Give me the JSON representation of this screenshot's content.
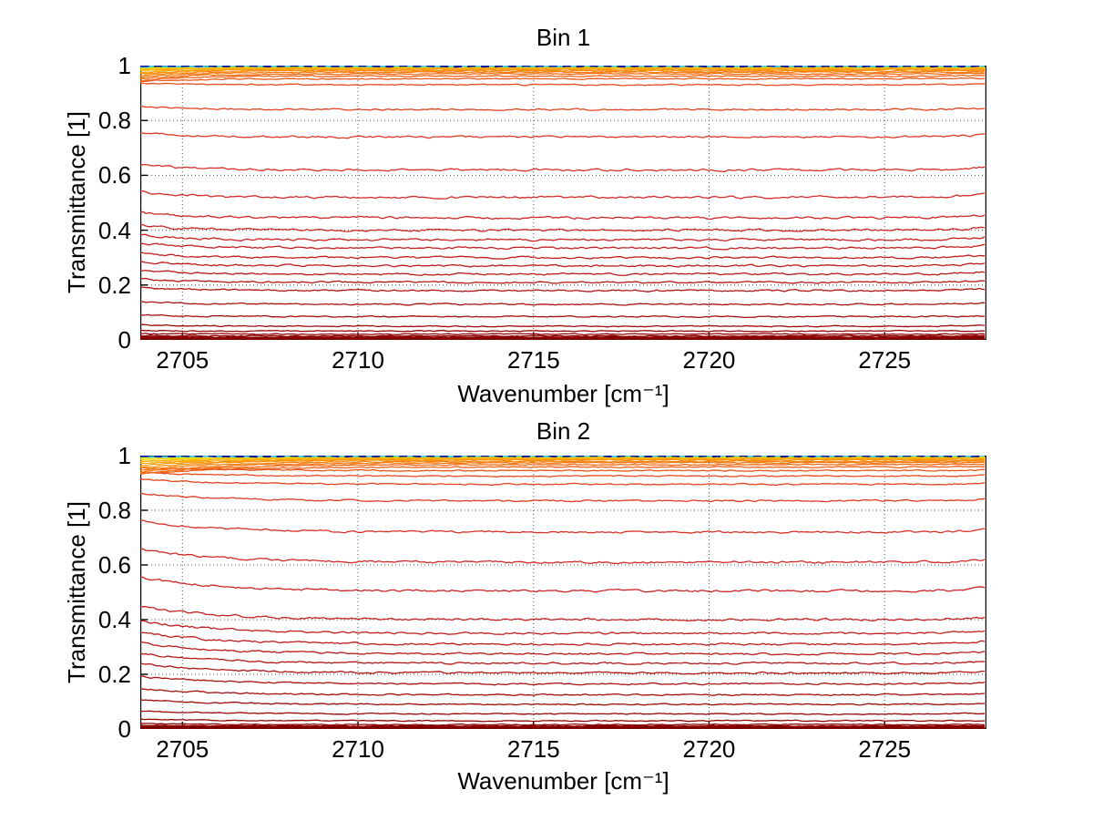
{
  "figure": {
    "background_color": "#FFFFFF",
    "text_color": "#000000"
  },
  "chart_data": [
    {
      "type": "line",
      "title": "Bin 1",
      "xlabel": "Wavenumber [cm⁻¹]",
      "ylabel": "Transmittance [1]",
      "xlim": [
        2703.8,
        2727.9
      ],
      "ylim": [
        0,
        1
      ],
      "xticks": [
        2705,
        2710,
        2715,
        2720,
        2725
      ],
      "yticks": [
        0,
        0.2,
        0.4,
        0.6,
        0.8,
        1
      ],
      "ytick_labels": [
        "0",
        "0.2",
        "0.4",
        "0.6",
        "0.8",
        "1"
      ],
      "grid": "dotted",
      "grid_color": "#555555",
      "axis_color": "#000000",
      "legend": "none",
      "left_elevation": 0.02,
      "left_dip_near_one": 0.02,
      "elevation_decay_cm": 1.3,
      "right_hook": 0.012,
      "series": [
        {
          "level": 0.004,
          "color": "#7A0000",
          "width": 4
        },
        {
          "level": 0.009,
          "color": "#8B0000",
          "width": 2
        },
        {
          "level": 0.014,
          "color": "#8E0202"
        },
        {
          "level": 0.021,
          "color": "#920505"
        },
        {
          "level": 0.032,
          "color": "#970808"
        },
        {
          "level": 0.05,
          "color": "#9C0B0B"
        },
        {
          "level": 0.085,
          "color": "#A20F0F"
        },
        {
          "level": 0.13,
          "color": "#A81212"
        },
        {
          "level": 0.18,
          "color": "#AE1515"
        },
        {
          "level": 0.21,
          "color": "#B21717"
        },
        {
          "level": 0.24,
          "color": "#B61919"
        },
        {
          "level": 0.27,
          "color": "#BA1B1B"
        },
        {
          "level": 0.3,
          "color": "#BE1D1D"
        },
        {
          "level": 0.335,
          "color": "#C22020"
        },
        {
          "level": 0.365,
          "color": "#C52222"
        },
        {
          "level": 0.4,
          "color": "#C92424"
        },
        {
          "level": 0.445,
          "color": "#CD2626"
        },
        {
          "level": 0.52,
          "color": "#D22B29"
        },
        {
          "level": 0.62,
          "color": "#D73127"
        },
        {
          "level": 0.74,
          "color": "#DC3A25"
        },
        {
          "level": 0.84,
          "color": "#E14322"
        },
        {
          "level": 0.93,
          "color": "#E64D1F"
        },
        {
          "level": 0.952,
          "color": "#EA581C"
        },
        {
          "level": 0.962,
          "color": "#EE6318"
        },
        {
          "level": 0.97,
          "color": "#F16F14"
        },
        {
          "level": 0.976,
          "color": "#F47B11"
        },
        {
          "level": 0.981,
          "color": "#F7870D"
        },
        {
          "level": 0.985,
          "color": "#F9930A"
        },
        {
          "level": 0.988,
          "color": "#FB9F07"
        },
        {
          "level": 0.991,
          "color": "#FDAB04"
        },
        {
          "level": 0.9935,
          "color": "#FFB900",
          "width": 1.5
        },
        {
          "level": 0.9955,
          "color": "#F4D600",
          "width": 1.5
        },
        {
          "level": 0.997,
          "color": "#CFE400"
        },
        {
          "level": 0.998,
          "color": "#3CCFE6",
          "width": 1.8
        },
        {
          "level": 0.999,
          "color": "#00139B",
          "width": 2.6,
          "dash": "9 6"
        }
      ]
    },
    {
      "type": "line",
      "title": "Bin 2",
      "xlabel": "Wavenumber [cm⁻¹]",
      "ylabel": "Transmittance [1]",
      "xlim": [
        2703.8,
        2727.9
      ],
      "ylim": [
        0,
        1
      ],
      "xticks": [
        2705,
        2710,
        2715,
        2720,
        2725
      ],
      "yticks": [
        0,
        0.2,
        0.4,
        0.6,
        0.8,
        1
      ],
      "ytick_labels": [
        "0",
        "0.2",
        "0.4",
        "0.6",
        "0.8",
        "1"
      ],
      "grid": "dotted",
      "grid_color": "#555555",
      "axis_color": "#000000",
      "legend": "none",
      "left_elevation": 0.05,
      "left_dip_near_one": 0.035,
      "elevation_decay_cm": 2.2,
      "right_hook": 0.012,
      "series": [
        {
          "level": 0.004,
          "color": "#7A0000",
          "width": 4
        },
        {
          "level": 0.01,
          "color": "#8B0000",
          "width": 2
        },
        {
          "level": 0.016,
          "color": "#8E0202"
        },
        {
          "level": 0.03,
          "color": "#920505"
        },
        {
          "level": 0.055,
          "color": "#970808"
        },
        {
          "level": 0.09,
          "color": "#9C0B0B"
        },
        {
          "level": 0.125,
          "color": "#A20F0F"
        },
        {
          "level": 0.165,
          "color": "#A81212"
        },
        {
          "level": 0.205,
          "color": "#AE1515"
        },
        {
          "level": 0.24,
          "color": "#B21717"
        },
        {
          "level": 0.275,
          "color": "#B61919"
        },
        {
          "level": 0.31,
          "color": "#BA1B1B"
        },
        {
          "level": 0.35,
          "color": "#BF1E1E"
        },
        {
          "level": 0.4,
          "color": "#C42121"
        },
        {
          "level": 0.505,
          "color": "#CA2424"
        },
        {
          "level": 0.61,
          "color": "#D02927"
        },
        {
          "level": 0.72,
          "color": "#D73025"
        },
        {
          "level": 0.835,
          "color": "#DD3A23"
        },
        {
          "level": 0.895,
          "color": "#E24320"
        },
        {
          "level": 0.925,
          "color": "#E64B1E"
        },
        {
          "level": 0.945,
          "color": "#E9551B"
        },
        {
          "level": 0.958,
          "color": "#EC5F17"
        },
        {
          "level": 0.967,
          "color": "#F06A14"
        },
        {
          "level": 0.974,
          "color": "#F37611"
        },
        {
          "level": 0.979,
          "color": "#F6820D"
        },
        {
          "level": 0.984,
          "color": "#F88E0A"
        },
        {
          "level": 0.987,
          "color": "#FA9A07"
        },
        {
          "level": 0.99,
          "color": "#FCA604"
        },
        {
          "level": 0.9925,
          "color": "#FFB400",
          "width": 1.5
        },
        {
          "level": 0.995,
          "color": "#F4D600",
          "width": 1.5
        },
        {
          "level": 0.997,
          "color": "#CFE400"
        },
        {
          "level": 0.998,
          "color": "#3CCFE6",
          "width": 1.8
        },
        {
          "level": 0.999,
          "color": "#00139B",
          "width": 2.6,
          "dash": "9 6"
        }
      ]
    }
  ]
}
